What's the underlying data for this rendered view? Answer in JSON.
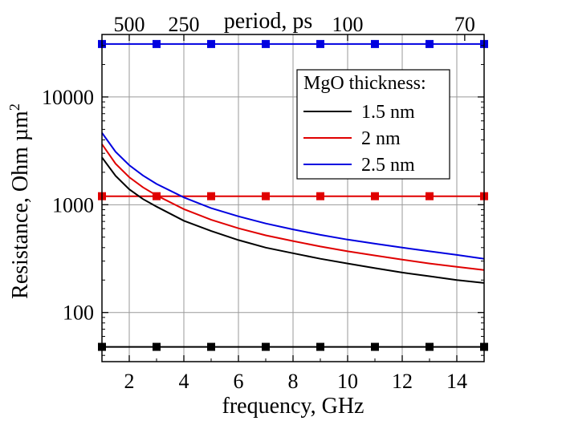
{
  "chart_data": {
    "type": "line",
    "xlabel": "frequency, GHz",
    "ylabel": "Resistance, Ohm µm",
    "ylabel_superscript": "2",
    "top_axis_label": "period, ps",
    "xlim": [
      1,
      15
    ],
    "ylim": [
      35,
      38000
    ],
    "yscale": "log",
    "grid": true,
    "x_ticks": [
      2,
      4,
      6,
      8,
      10,
      12,
      14
    ],
    "x_tick_labels": [
      "2",
      "4",
      "6",
      "8",
      "10",
      "12",
      "14"
    ],
    "y_ticks": [
      100,
      1000,
      10000
    ],
    "y_tick_labels": [
      "100",
      "1000",
      "10000"
    ],
    "top_ticks": [
      {
        "label": "500",
        "freq": 2
      },
      {
        "label": "250",
        "freq": 4
      },
      {
        "label": "100",
        "freq": 10
      },
      {
        "label": "70",
        "freq": 14.29
      }
    ],
    "legend": {
      "title": "MgO thickness:",
      "placement": "top-right",
      "entries": [
        "1.5 nm",
        "2 nm",
        "2.5 nm"
      ]
    },
    "series": [
      {
        "name": "1.5 nm",
        "color": "#000000",
        "marker": "square",
        "x": [
          1,
          3,
          5,
          7,
          9,
          11,
          13,
          15
        ],
        "y": [
          48,
          48,
          48,
          48,
          48,
          48,
          48,
          48
        ]
      },
      {
        "name": "2 nm",
        "color": "#e00000",
        "marker": "square",
        "x": [
          1,
          3,
          5,
          7,
          9,
          11,
          13,
          15
        ],
        "y": [
          1200,
          1200,
          1200,
          1200,
          1200,
          1200,
          1200,
          1200
        ]
      },
      {
        "name": "2.5 nm",
        "color": "#0000e0",
        "marker": "square",
        "x": [
          1,
          3,
          5,
          7,
          9,
          11,
          13,
          15
        ],
        "y": [
          31000,
          31000,
          31000,
          31000,
          31000,
          31000,
          31000,
          31000
        ]
      },
      {
        "name": "1.5 nm",
        "color": "#000000",
        "marker": "none",
        "x": [
          1,
          1.5,
          2,
          2.5,
          3,
          4,
          5,
          6,
          7,
          8,
          9,
          10,
          11,
          12,
          13,
          14,
          15
        ],
        "y": [
          2750,
          1850,
          1390,
          1130,
          960,
          710,
          570,
          470,
          400,
          355,
          315,
          285,
          258,
          235,
          217,
          200,
          188
        ]
      },
      {
        "name": "2 nm",
        "color": "#e00000",
        "marker": "none",
        "x": [
          1,
          1.5,
          2,
          2.5,
          3,
          4,
          5,
          6,
          7,
          8,
          9,
          10,
          11,
          12,
          13,
          14,
          15
        ],
        "y": [
          3650,
          2400,
          1800,
          1450,
          1220,
          910,
          725,
          605,
          520,
          460,
          410,
          370,
          338,
          310,
          285,
          265,
          248
        ]
      },
      {
        "name": "2.5 nm",
        "color": "#0000e0",
        "marker": "none",
        "x": [
          1,
          1.5,
          2,
          2.5,
          3,
          4,
          5,
          6,
          7,
          8,
          9,
          10,
          11,
          12,
          13,
          14,
          15
        ],
        "y": [
          4650,
          3100,
          2330,
          1870,
          1560,
          1170,
          930,
          780,
          670,
          590,
          525,
          475,
          435,
          400,
          370,
          342,
          315
        ]
      }
    ]
  }
}
